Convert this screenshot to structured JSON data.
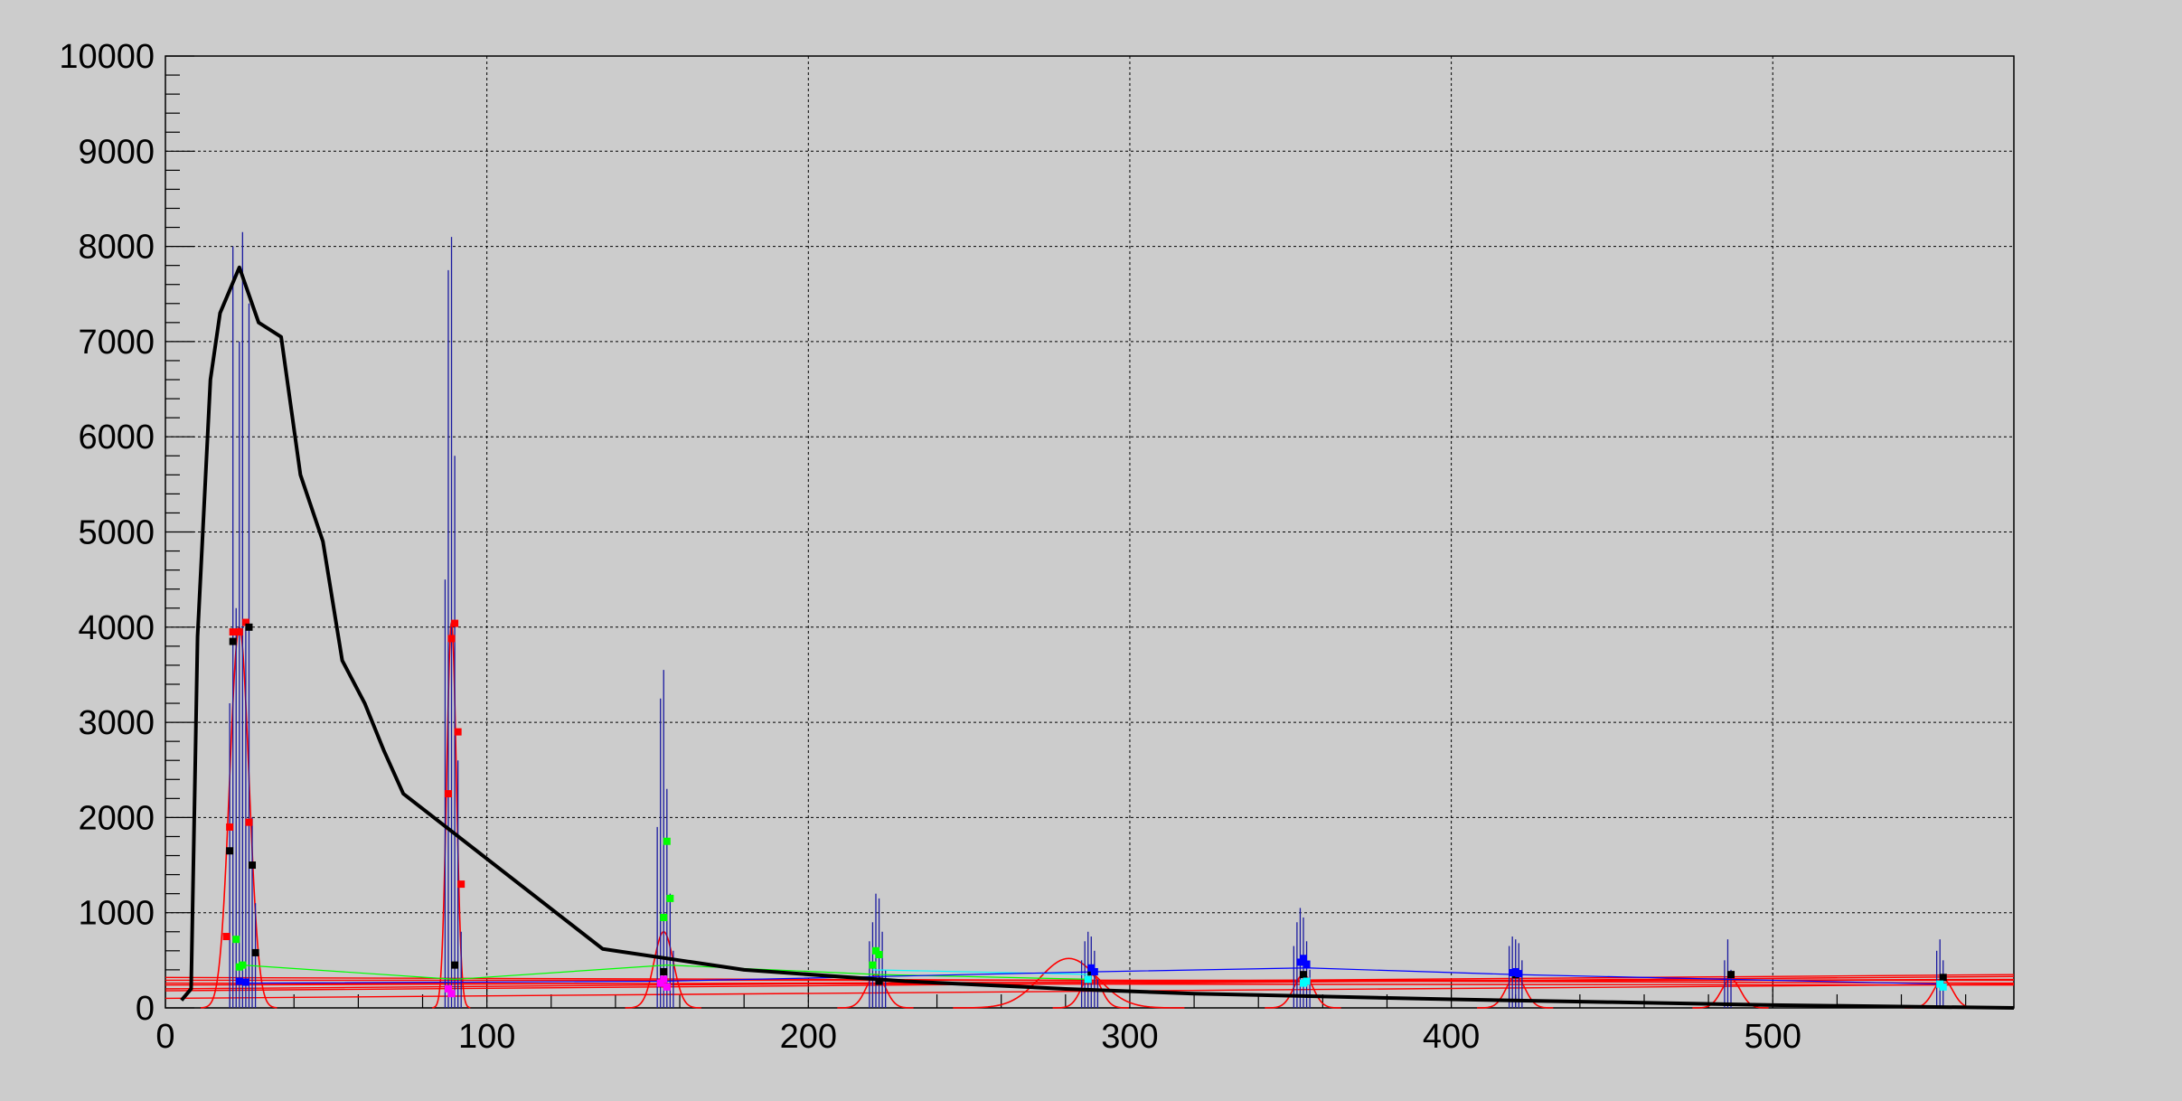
{
  "chart_data": {
    "type": "line",
    "title": "",
    "xlabel": "",
    "ylabel": "",
    "xlim": [
      0,
      575
    ],
    "ylim": [
      0,
      10000
    ],
    "grid": true,
    "x_ticks": [
      0,
      100,
      200,
      300,
      400,
      500
    ],
    "y_ticks": [
      0,
      1000,
      2000,
      3000,
      4000,
      5000,
      6000,
      7000,
      8000,
      9000,
      10000
    ],
    "x_tick_labels": [
      "0",
      "100",
      "200",
      "300",
      "400",
      "500"
    ],
    "y_tick_labels": [
      "0",
      "1000",
      "2000",
      "3000",
      "4000",
      "5000",
      "6000",
      "7000",
      "8000",
      "9000",
      "10000"
    ],
    "colors": {
      "background": "#cccccc",
      "main_curve": "#000000",
      "spikes": "#1a1aa0",
      "fits": "#ff0000",
      "markers_red": "#ff0000",
      "markers_green": "#00ff00",
      "markers_blue": "#0000ff",
      "markers_black": "#000000",
      "markers_cyan": "#00ffff"
    },
    "series": [
      {
        "color": "#000000",
        "x": [
          5,
          8,
          10,
          14,
          17,
          23,
          29,
          36,
          42,
          49,
          55,
          62,
          68,
          74,
          136,
          180,
          230,
          280,
          320,
          400,
          450,
          500,
          575
        ],
        "y": [
          80,
          200,
          3900,
          6600,
          7300,
          7780,
          7200,
          7050,
          5600,
          4900,
          3650,
          3200,
          2700,
          2250,
          620,
          400,
          280,
          200,
          150,
          90,
          60,
          30,
          0
        ]
      }
    ],
    "spike_groups": [
      {
        "x": [
          20,
          21,
          22,
          23,
          24,
          25,
          26,
          27,
          28
        ],
        "y": [
          3200,
          8000,
          4200,
          7000,
          8150,
          4000,
          7400,
          2000,
          1100
        ]
      },
      {
        "x": [
          87,
          88,
          89,
          90,
          91,
          92
        ],
        "y": [
          4500,
          7750,
          8100,
          5800,
          2600,
          800
        ]
      },
      {
        "x": [
          153,
          154,
          155,
          156,
          157,
          158
        ],
        "y": [
          1900,
          3250,
          3550,
          2300,
          1200,
          600
        ]
      },
      {
        "x": [
          219,
          220,
          221,
          222,
          223,
          224
        ],
        "y": [
          700,
          900,
          1200,
          1150,
          800,
          400
        ]
      },
      {
        "x": [
          285,
          286,
          287,
          288,
          289,
          290
        ],
        "y": [
          500,
          700,
          800,
          750,
          600,
          300
        ]
      },
      {
        "x": [
          351,
          352,
          353,
          354,
          355,
          356
        ],
        "y": [
          650,
          900,
          1050,
          950,
          700,
          400
        ]
      },
      {
        "x": [
          418,
          419,
          420,
          421,
          422
        ],
        "y": [
          650,
          750,
          720,
          680,
          500
        ]
      },
      {
        "x": [
          485,
          486,
          487
        ],
        "y": [
          500,
          720,
          400
        ]
      },
      {
        "x": [
          551,
          552,
          553
        ],
        "y": [
          600,
          720,
          500
        ]
      }
    ],
    "fit_peaks": [
      {
        "center": 23,
        "amplitude": 4000,
        "sigma": 3
      },
      {
        "center": 89,
        "amplitude": 4050,
        "sigma": 1.5
      },
      {
        "center": 155,
        "amplitude": 800,
        "sigma": 3
      },
      {
        "center": 221,
        "amplitude": 350,
        "sigma": 3
      },
      {
        "center": 281,
        "amplitude": 520,
        "sigma": 9
      },
      {
        "center": 288,
        "amplitude": 350,
        "sigma": 3
      },
      {
        "center": 354,
        "amplitude": 350,
        "sigma": 3
      },
      {
        "center": 420,
        "amplitude": 330,
        "sigma": 3
      },
      {
        "center": 487,
        "amplitude": 300,
        "sigma": 3
      },
      {
        "center": 553,
        "amplitude": 300,
        "sigma": 3
      }
    ],
    "fit_baselines": [
      {
        "x": [
          0,
          575
        ],
        "y": [
          290,
          290
        ]
      },
      {
        "x": [
          0,
          575
        ],
        "y": [
          240,
          300
        ]
      },
      {
        "x": [
          0,
          575
        ],
        "y": [
          200,
          350
        ]
      },
      {
        "x": [
          0,
          575
        ],
        "y": [
          320,
          260
        ]
      },
      {
        "x": [
          0,
          575
        ],
        "y": [
          180,
          330
        ]
      },
      {
        "x": [
          0,
          575
        ],
        "y": [
          100,
          250
        ]
      },
      {
        "x": [
          0,
          575
        ],
        "y": [
          260,
          240
        ]
      }
    ],
    "marker_sets": [
      {
        "color": "#ff0000",
        "x": [
          19,
          20,
          21,
          23,
          25,
          26,
          88,
          89,
          90,
          91,
          92
        ],
        "y": [
          750,
          1900,
          3950,
          3950,
          4050,
          1950,
          2250,
          3880,
          4040,
          2900,
          1300
        ]
      },
      {
        "color": "#000000",
        "x": [
          20,
          21,
          26,
          27,
          28,
          90,
          155,
          222,
          288,
          354,
          420,
          487,
          553
        ],
        "y": [
          1650,
          3850,
          4000,
          1500,
          580,
          450,
          380,
          280,
          380,
          350,
          350,
          350,
          320
        ]
      },
      {
        "color": "#00ff00",
        "x": [
          22,
          23,
          24,
          155,
          156,
          157,
          220,
          221,
          222
        ],
        "y": [
          720,
          430,
          450,
          950,
          1750,
          1150,
          450,
          600,
          560
        ]
      },
      {
        "color": "#0000ff",
        "x": [
          23,
          25,
          288,
          289,
          353,
          354,
          355,
          419,
          420,
          421
        ],
        "y": [
          280,
          270,
          420,
          380,
          480,
          520,
          460,
          370,
          380,
          360
        ]
      },
      {
        "color": "#00ffff",
        "x": [
          287,
          354,
          355,
          552,
          553
        ],
        "y": [
          300,
          260,
          280,
          250,
          220
        ]
      },
      {
        "color": "#ff00ff",
        "x": [
          88,
          89,
          154,
          155,
          156
        ],
        "y": [
          200,
          150,
          260,
          300,
          220
        ]
      }
    ],
    "connector_lines": [
      {
        "color": "#00ff00",
        "x": [
          24,
          90,
          156,
          222,
          288
        ],
        "y": [
          450,
          300,
          450,
          350,
          300
        ]
      },
      {
        "color": "#00ffff",
        "x": [
          220,
          290
        ],
        "y": [
          400,
          350
        ]
      },
      {
        "color": "#0000ff",
        "x": [
          24,
          155,
          290,
          355,
          420,
          553
        ],
        "y": [
          260,
          280,
          380,
          420,
          350,
          250
        ]
      }
    ]
  }
}
